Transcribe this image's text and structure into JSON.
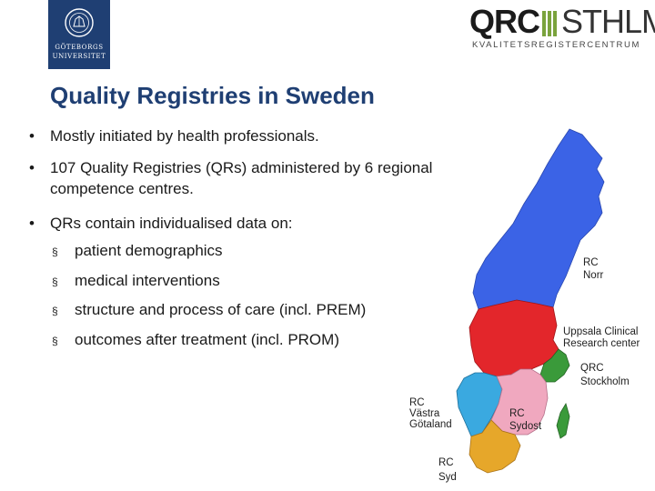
{
  "header": {
    "university_logo": {
      "icon": "university-seal-icon",
      "line1": "GÖTEBORGS",
      "line2": "UNIVERSITET",
      "color": "#1f3f73"
    },
    "qrc_logo": {
      "bold": "QRC",
      "light": "STHLM",
      "subtitle": "KVALITETSREGISTERCENTRUM",
      "accent": "#7aa33c"
    }
  },
  "slide": {
    "title": "Quality Registries in Sweden",
    "bullets": [
      "Mostly initiated by health professionals.",
      "107 Quality Registries (QRs) administered by 6 regional competence centres.",
      "QRs contain individualised data on:"
    ],
    "bullet_symbol": "•",
    "sub_symbol": "§",
    "sub_bullets": [
      "patient demographics",
      "medical interventions",
      "structure and process of care (incl. PREM)",
      "outcomes after treatment (incl. PROM)"
    ]
  },
  "map": {
    "regions": [
      {
        "label_lines": [
          "RC",
          "Norr"
        ],
        "color": "#3b63e6"
      },
      {
        "label_lines": [
          "Uppsala Clinical",
          "Research center"
        ],
        "color": "#e3262b"
      },
      {
        "label_lines": [
          "QRC",
          "Stockholm"
        ],
        "color": "#3a9a3a"
      },
      {
        "label_lines": [
          "RC",
          "Västra",
          "Götaland"
        ],
        "color": "#3aa9e0"
      },
      {
        "label_lines": [
          "RC",
          "Sydost"
        ],
        "color": "#f0a8bf"
      },
      {
        "label_lines": [
          "RC",
          "Syd"
        ],
        "color": "#e6a72a"
      }
    ]
  }
}
